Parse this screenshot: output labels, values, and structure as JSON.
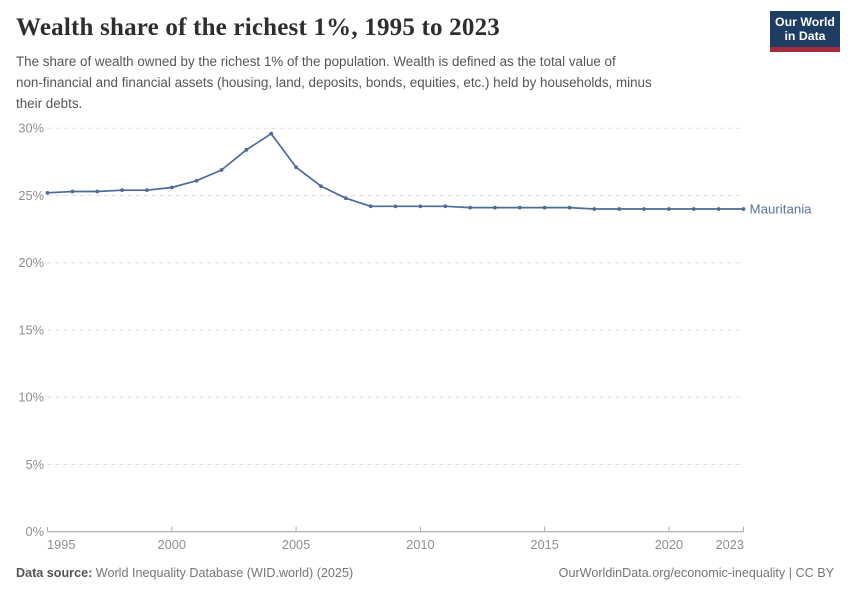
{
  "header": {
    "title": "Wealth share of the richest 1%, 1995 to 2023",
    "subtitle_lines": [
      "The share of wealth owned by the richest 1% of the population. Wealth is defined as the total value of",
      "non-financial and financial assets (housing, land, deposits, bonds, equities, etc.) held by households, minus",
      "their debts."
    ],
    "logo_lines": [
      "Our World",
      "in Data"
    ],
    "logo_colors": {
      "background": "#1d3d63",
      "bar": "#a62c3a",
      "text": "#ffffff"
    }
  },
  "chart_data": {
    "type": "line",
    "title": "Wealth share of the richest 1%, 1995 to 2023",
    "xlabel": "",
    "ylabel": "",
    "xlim": [
      1995,
      2023
    ],
    "ylim": [
      0,
      30
    ],
    "grid": "horizontal-dashed",
    "legend_position": "label-at-line-end",
    "line_color": "#4c6a9c",
    "grid_color": "#dcdcdc",
    "axis_color": "#9e9e9e",
    "entity_label": "Mauritania",
    "y_ticks": [
      {
        "value": 0,
        "label": "0%"
      },
      {
        "value": 5,
        "label": "5%"
      },
      {
        "value": 10,
        "label": "10%"
      },
      {
        "value": 15,
        "label": "15%"
      },
      {
        "value": 20,
        "label": "20%"
      },
      {
        "value": 25,
        "label": "25%"
      },
      {
        "value": 30,
        "label": "30%"
      }
    ],
    "x_ticks": [
      {
        "value": 1995,
        "label": "1995"
      },
      {
        "value": 2000,
        "label": "2000"
      },
      {
        "value": 2005,
        "label": "2005"
      },
      {
        "value": 2010,
        "label": "2010"
      },
      {
        "value": 2015,
        "label": "2015"
      },
      {
        "value": 2020,
        "label": "2020"
      },
      {
        "value": 2023,
        "label": "2023"
      }
    ],
    "series": [
      {
        "name": "Mauritania",
        "x": [
          1995,
          1996,
          1997,
          1998,
          1999,
          2000,
          2001,
          2002,
          2003,
          2004,
          2005,
          2006,
          2007,
          2008,
          2009,
          2010,
          2011,
          2012,
          2013,
          2014,
          2015,
          2016,
          2017,
          2018,
          2019,
          2020,
          2021,
          2022,
          2023
        ],
        "values": [
          25.2,
          25.3,
          25.3,
          25.4,
          25.4,
          25.6,
          26.1,
          26.9,
          28.4,
          29.6,
          27.1,
          25.7,
          24.8,
          24.2,
          24.2,
          24.2,
          24.2,
          24.1,
          24.1,
          24.1,
          24.1,
          24.1,
          24.0,
          24.0,
          24.0,
          24.0,
          24.0,
          24.0,
          24.0
        ]
      }
    ]
  },
  "footer": {
    "source_label": "Data source:",
    "source_value": "World Inequality Database (WID.world) (2025)",
    "attribution": "OurWorldinData.org/economic-inequality | CC BY"
  }
}
